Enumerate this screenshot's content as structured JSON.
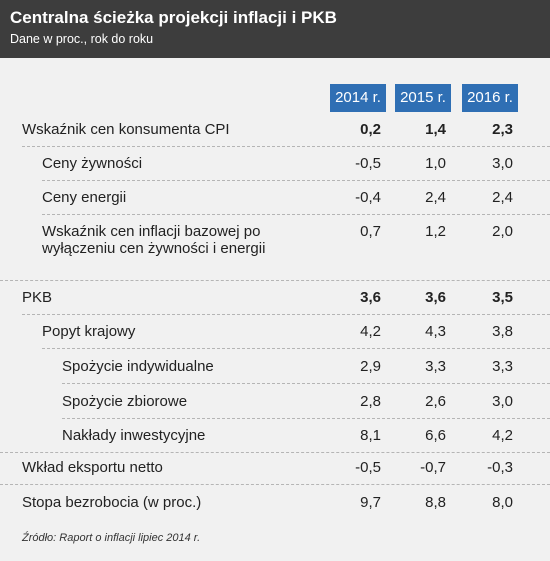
{
  "header": {
    "title": "Centralna ścieżka projekcji inflacji i PKB",
    "subtitle": "Dane w proc., rok do roku"
  },
  "table": {
    "columns": [
      "2014 r.",
      "2015 r.",
      "2016 r."
    ],
    "rows": [
      {
        "label": "Wskaźnik cen konsumenta CPI",
        "values": [
          "0,2",
          "1,4",
          "2,3"
        ]
      },
      {
        "label": "Ceny żywności",
        "values": [
          "-0,5",
          "1,0",
          "3,0"
        ]
      },
      {
        "label": "Ceny energii",
        "values": [
          "-0,4",
          "2,4",
          "2,4"
        ]
      },
      {
        "label": "Wskaźnik cen inflacji bazowej po wyłączeniu cen żywności i energii",
        "values": [
          "0,7",
          "1,2",
          "2,0"
        ]
      },
      {
        "label": "PKB",
        "values": [
          "3,6",
          "3,6",
          "3,5"
        ]
      },
      {
        "label": "Popyt krajowy",
        "values": [
          "4,2",
          "4,3",
          "3,8"
        ]
      },
      {
        "label": "Spożycie indywidualne",
        "values": [
          "2,9",
          "3,3",
          "3,3"
        ]
      },
      {
        "label": "Spożycie zbiorowe",
        "values": [
          "2,8",
          "2,6",
          "3,0"
        ]
      },
      {
        "label": "Nakłady inwestycyjne",
        "values": [
          "8,1",
          "6,6",
          "4,2"
        ]
      },
      {
        "label": "Wkład eksportu netto",
        "values": [
          "-0,5",
          "-0,7",
          "-0,3"
        ]
      },
      {
        "label": "Stopa bezrobocia (w proc.)",
        "values": [
          "9,7",
          "8,8",
          "8,0"
        ]
      }
    ]
  },
  "source": "Źródło: Raport o inflacji lipiec 2014 r."
}
